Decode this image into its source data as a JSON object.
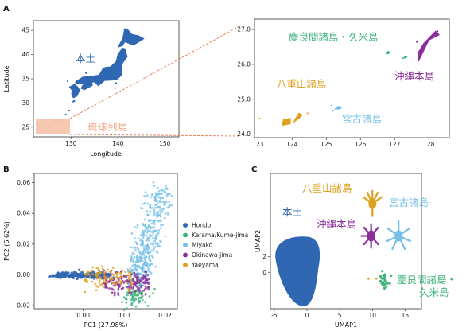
{
  "panels": {
    "a": "A",
    "b": "B",
    "c": "C"
  },
  "colors": {
    "hondo": "#2f67b2",
    "kerama": "#3db37b",
    "miyako": "#74c0ea",
    "okinawa": "#8a2f9a",
    "yaeyama": "#e0a020",
    "ryukyu_box": "#f4b99d",
    "ryukyu_text": "#f2a98a",
    "connector": "#e8825e"
  },
  "chart_data": [
    {
      "type": "scatter",
      "panel": "A",
      "view": "map-main",
      "xlabel": "Longitude",
      "ylabel": "Latitude",
      "xlim": [
        122,
        153
      ],
      "ylim": [
        23,
        47
      ],
      "xticks": [
        "130",
        "140",
        "150"
      ],
      "yticks": [
        "25",
        "30",
        "35",
        "40",
        "45"
      ],
      "region_labels": {
        "hondo": "本土",
        "ryukyu": "琉球列島"
      },
      "inset_extent": {
        "lon": [
          122.5,
          131
        ],
        "lat": [
          23.8,
          27.2
        ]
      }
    },
    {
      "type": "scatter",
      "panel": "A",
      "view": "map-ryukyu",
      "xlim": [
        122.9,
        128.6
      ],
      "ylim": [
        23.9,
        27.3
      ],
      "xticks": [
        "123",
        "124",
        "125",
        "126",
        "127",
        "128"
      ],
      "yticks": [
        "24.0",
        "25.0",
        "26.0",
        "27.0"
      ],
      "region_labels": {
        "kerama": "慶良間諸島・久米島",
        "okinawa": "沖縄本島",
        "yaeyama": "八重山諸島",
        "miyako": "宮古諸島"
      }
    },
    {
      "type": "scatter",
      "panel": "B",
      "xlabel": "PC1 (27.98%)",
      "ylabel": "PC2 (6.62%)",
      "xlim": [
        -0.012,
        0.023
      ],
      "ylim": [
        -0.022,
        0.066
      ],
      "xticks": [
        "0.00",
        "0.01",
        "0.02"
      ],
      "yticks": [
        "-0.02",
        "0.00",
        "0.02",
        "0.04",
        "0.06"
      ],
      "legend": [
        "Hondo",
        "Kerama/Kume-jima",
        "Miyako",
        "Okinawa-jima",
        "Yaeyama"
      ],
      "legend_position": "right"
    },
    {
      "type": "scatter",
      "panel": "C",
      "xlabel": "UMAP1",
      "ylabel": "UMAP2",
      "xlim": [
        -5.6,
        17.5
      ],
      "ylim": [
        -4.6,
        12.5
      ],
      "xticks": [
        "-5",
        "0",
        "5",
        "10",
        "15"
      ],
      "yticks": [
        "0",
        "2"
      ],
      "region_labels": {
        "hondo": "本土",
        "yaeyama": "八重山諸島",
        "okinawa": "沖縄本島",
        "miyako": "宮古諸島",
        "kerama": "慶良間諸島・\n久米島"
      }
    }
  ]
}
